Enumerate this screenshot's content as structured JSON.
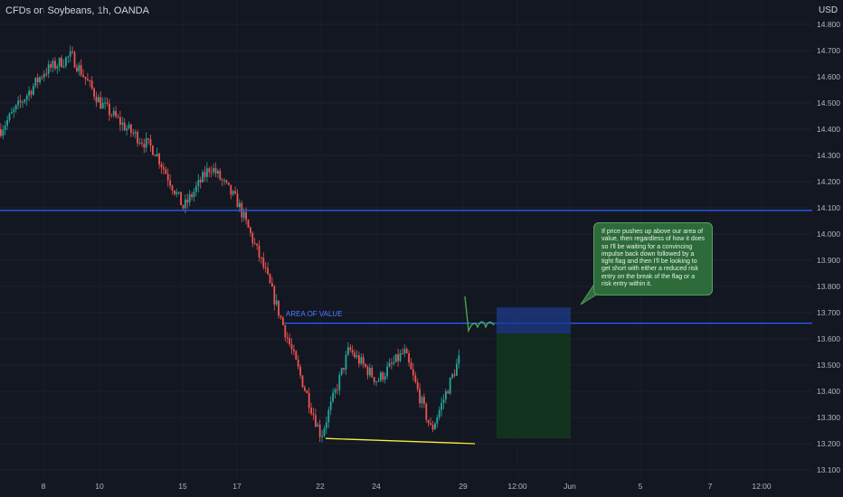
{
  "header": {
    "title": "CFDs on Soybeans, 1h, OANDA",
    "currency": "USD"
  },
  "annotations": {
    "area_label": "AREA OF VALUE",
    "note": "If price pushes up above our area of value, then regardless of how it does so I'll be waiting for a convincing impulse back down followed by a tight flag and then I'll be looking to get short with either a reduced risk entry on the break of the flag or a risk entry within it."
  },
  "colors": {
    "background": "#131722",
    "up": "#26a69a",
    "down": "#ef5350",
    "level_line": "#2962ff",
    "support_line": "#ffeb3b",
    "projection": "#4caf50",
    "short_risk_zone": "#1e3a8a",
    "short_target_zone": "#12361d"
  },
  "chart_data": {
    "type": "candlestick",
    "symbol": "CFDs on Soybeans, 1h, OANDA",
    "ylabel": "USD",
    "ylim": [
      13.05,
      14.92
    ],
    "y_ticks": [
      "14.800",
      "14.700",
      "14.600",
      "14.500",
      "14.400",
      "14.300",
      "14.200",
      "14.100",
      "14.000",
      "13.900",
      "13.800",
      "13.700",
      "13.600",
      "13.500",
      "13.400",
      "13.300",
      "13.200",
      "13.100"
    ],
    "x_ticks": [
      "8",
      "10",
      "15",
      "17",
      "22",
      "24",
      "29",
      "12:00",
      "Jun",
      "5",
      "7",
      "12:00"
    ],
    "price_path": [
      {
        "x": "7",
        "y": 14.4
      },
      {
        "x": "8",
        "y": 14.62
      },
      {
        "x": "9",
        "y": 14.68
      },
      {
        "x": "10",
        "y": 14.5
      },
      {
        "x": "11",
        "y": 14.4
      },
      {
        "x": "14",
        "y": 14.32
      },
      {
        "x": "15",
        "y": 14.1
      },
      {
        "x": "16",
        "y": 14.26
      },
      {
        "x": "17",
        "y": 14.12
      },
      {
        "x": "18",
        "y": 13.86
      },
      {
        "x": "19",
        "y": 13.55
      },
      {
        "x": "22",
        "y": 13.23
      },
      {
        "x": "23",
        "y": 13.56
      },
      {
        "x": "24",
        "y": 13.44
      },
      {
        "x": "25",
        "y": 13.55
      },
      {
        "x": "26",
        "y": 13.25
      },
      {
        "x": "29",
        "y": 13.57
      }
    ],
    "levels": [
      {
        "price": 14.09
      },
      {
        "price": 13.66,
        "label": "AREA OF VALUE"
      }
    ],
    "trendline": {
      "from": {
        "x": "22",
        "y": 13.22
      },
      "to": {
        "x": "29",
        "y": 13.2
      }
    },
    "short_position": {
      "entry": 13.62,
      "stop": 13.72,
      "target": 13.22
    }
  }
}
